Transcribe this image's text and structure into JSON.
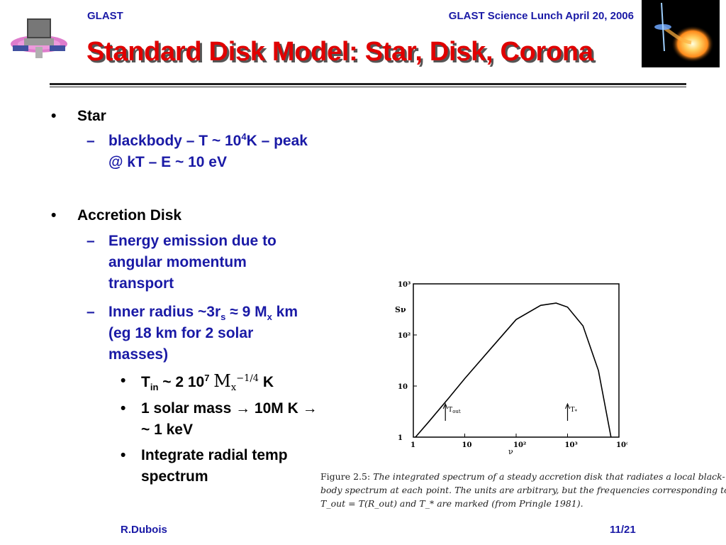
{
  "header": {
    "left": "GLAST",
    "right": "GLAST Science Lunch April 20, 2006",
    "title": "Standard Disk Model: Star, Disk, Corona"
  },
  "bullets": {
    "star": "Star",
    "star_sub1_a": "blackbody – T ~ 10",
    "star_sub1_sup": "4",
    "star_sub1_b": "K – peak",
    "star_sub1_line2": "@ kT –  E ~ 10 eV",
    "disk": "Accretion Disk",
    "disk_sub1_l1": "Energy emission due to",
    "disk_sub1_l2": "angular momentum",
    "disk_sub1_l3": "transport",
    "disk_sub2_a": "Inner radius ~3r",
    "disk_sub2_sub_s": "s",
    "disk_sub2_b": " ≈ 9 M",
    "disk_sub2_sub_x": "x",
    "disk_sub2_c": " km",
    "disk_sub2_l2": "(eg 18 km for 2 solar",
    "disk_sub2_l3": "masses)",
    "tin_a": "T",
    "tin_sub": "in",
    "tin_b": " ~ 2 10",
    "tin_sup": "7",
    "tin_m": "M",
    "tin_m_sub": "x",
    "tin_m_sup": "−1/4",
    "tin_c": " K",
    "mass_l1": "1 solar mass → 10M K →",
    "mass_l2": "~ 1 keV",
    "integ_l1": "Integrate radial temp",
    "integ_l2": "spectrum"
  },
  "figure": {
    "y_label": "Sν",
    "x_label": "ν",
    "ticks_y": [
      "10³",
      "10²",
      "10",
      "1"
    ],
    "ticks_x": [
      "1",
      "10",
      "10²",
      "10³",
      "10⁴"
    ],
    "marker_out": "T",
    "marker_out_sub": "out",
    "marker_star": "T",
    "marker_star_sub": "*",
    "caption_label": "Figure 2.5:",
    "caption_l1": " The integrated spectrum of a steady accretion disk that radiates a local black-",
    "caption_l2": "body spectrum at each point.  The units are arbitrary, but the frequencies corresponding to",
    "caption_l3": "T_out = T(R_out)  and T_*  are marked (from Pringle 1981).",
    "chart_data": {
      "type": "line",
      "xscale": "log",
      "yscale": "log",
      "xlim": [
        1,
        10000
      ],
      "ylim": [
        1,
        1000
      ],
      "x": [
        1.1,
        2,
        5,
        10,
        30,
        100,
        300,
        600,
        1000,
        2000,
        4000,
        7000
      ],
      "y": [
        1,
        2,
        6,
        14,
        50,
        200,
        380,
        420,
        350,
        150,
        20,
        1
      ]
    }
  },
  "footer": {
    "left": "R.Dubois",
    "right": "11/21"
  }
}
